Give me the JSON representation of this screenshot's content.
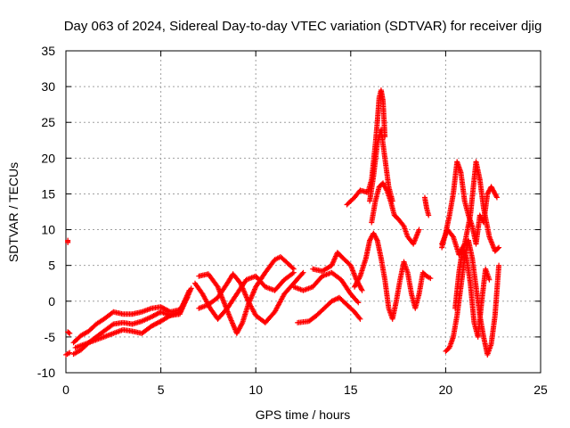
{
  "chart_data": {
    "type": "scatter",
    "title": "Day 063 of 2024, Sidereal Day-to-day VTEC variation (SDTVAR) for receiver djig",
    "xlabel": "GPS time / hours",
    "ylabel": "SDTVAR / TECUs",
    "xlim": [
      0,
      25
    ],
    "ylim": [
      -10,
      35
    ],
    "xticks": [
      0,
      5,
      10,
      15,
      20,
      25
    ],
    "yticks": [
      -10,
      -5,
      0,
      5,
      10,
      15,
      20,
      25,
      30,
      35
    ],
    "grid": true,
    "marker": "+",
    "color": "#ff0000",
    "series": [
      {
        "name": "s1",
        "points": [
          [
            0.1,
            8.2
          ],
          [
            0.1,
            8.5
          ]
        ]
      },
      {
        "name": "s2",
        "points": [
          [
            0.1,
            -4.3
          ],
          [
            0.2,
            -4.5
          ]
        ]
      },
      {
        "name": "s3",
        "points": [
          [
            0.0,
            -7.5
          ],
          [
            0.2,
            -7.2
          ]
        ]
      },
      {
        "name": "s4",
        "points": [
          [
            0.4,
            -5.8
          ],
          [
            0.8,
            -4.8
          ],
          [
            1.2,
            -4.2
          ],
          [
            1.6,
            -3.2
          ],
          [
            2.0,
            -2.5
          ],
          [
            2.5,
            -1.5
          ],
          [
            3.0,
            -1.8
          ],
          [
            3.5,
            -1.8
          ],
          [
            4.0,
            -1.5
          ],
          [
            4.5,
            -1.0
          ],
          [
            5.0,
            -0.8
          ],
          [
            5.5,
            -1.5
          ],
          [
            6.0,
            -1.2
          ],
          [
            6.4,
            0.5
          ]
        ]
      },
      {
        "name": "s5",
        "points": [
          [
            0.4,
            -7.4
          ],
          [
            0.8,
            -6.8
          ],
          [
            1.2,
            -5.8
          ],
          [
            1.6,
            -5.0
          ],
          [
            2.0,
            -4.2
          ],
          [
            2.5,
            -3.2
          ],
          [
            3.0,
            -3.0
          ],
          [
            3.5,
            -3.2
          ],
          [
            4.0,
            -2.8
          ],
          [
            4.5,
            -2.2
          ],
          [
            5.0,
            -1.5
          ],
          [
            5.5,
            -2.0
          ],
          [
            6.0,
            -1.5
          ],
          [
            6.5,
            1.5
          ]
        ]
      },
      {
        "name": "s6",
        "points": [
          [
            0.5,
            -6.5
          ],
          [
            1.0,
            -6.0
          ],
          [
            1.5,
            -5.5
          ],
          [
            2.0,
            -5.0
          ],
          [
            2.5,
            -4.5
          ],
          [
            3.0,
            -4.0
          ],
          [
            3.5,
            -4.2
          ],
          [
            4.0,
            -4.5
          ],
          [
            4.5,
            -3.5
          ],
          [
            5.0,
            -2.8
          ],
          [
            5.5,
            -2.0
          ],
          [
            6.0,
            -1.8
          ],
          [
            6.6,
            1.8
          ]
        ]
      },
      {
        "name": "s7",
        "points": [
          [
            7.0,
            3.5
          ],
          [
            7.5,
            3.8
          ],
          [
            8.0,
            2.0
          ],
          [
            8.3,
            0.0
          ],
          [
            8.6,
            -2.0
          ],
          [
            9.0,
            -4.5
          ],
          [
            9.3,
            -3.0
          ],
          [
            9.6,
            -0.5
          ],
          [
            10.0,
            2.0
          ],
          [
            10.5,
            4.0
          ],
          [
            11.0,
            5.8
          ],
          [
            11.3,
            6.2
          ],
          [
            11.6,
            5.5
          ],
          [
            12.0,
            4.5
          ]
        ]
      },
      {
        "name": "s8",
        "points": [
          [
            6.8,
            2.5
          ],
          [
            7.2,
            1.0
          ],
          [
            7.6,
            -1.0
          ],
          [
            8.0,
            -2.5
          ],
          [
            8.5,
            -1.0
          ],
          [
            9.0,
            1.0
          ],
          [
            9.5,
            3.0
          ],
          [
            10.0,
            3.5
          ],
          [
            10.5,
            2.0
          ],
          [
            11.0,
            1.5
          ],
          [
            11.5,
            3.0
          ],
          [
            12.0,
            4.0
          ]
        ]
      },
      {
        "name": "s9",
        "points": [
          [
            7.0,
            -1.0
          ],
          [
            7.5,
            -0.5
          ],
          [
            8.0,
            0.5
          ],
          [
            8.5,
            2.5
          ],
          [
            8.8,
            3.8
          ],
          [
            9.2,
            2.5
          ],
          [
            9.6,
            0.0
          ],
          [
            10.0,
            -2.0
          ],
          [
            10.5,
            -3.0
          ],
          [
            11.0,
            -1.5
          ],
          [
            11.5,
            1.0
          ],
          [
            12.0,
            2.5
          ],
          [
            12.5,
            4.0
          ]
        ]
      },
      {
        "name": "s10",
        "points": [
          [
            12.0,
            2.0
          ],
          [
            12.5,
            1.5
          ],
          [
            13.0,
            2.0
          ],
          [
            13.5,
            3.5
          ],
          [
            14.0,
            4.0
          ],
          [
            14.5,
            3.0
          ],
          [
            15.0,
            1.0
          ],
          [
            15.4,
            -0.2
          ]
        ]
      },
      {
        "name": "s11",
        "points": [
          [
            12.2,
            -3.0
          ],
          [
            12.8,
            -2.8
          ],
          [
            13.2,
            -2.0
          ],
          [
            13.6,
            -1.0
          ],
          [
            14.0,
            0.0
          ],
          [
            14.4,
            0.5
          ],
          [
            14.8,
            -0.5
          ],
          [
            15.2,
            -1.5
          ],
          [
            15.5,
            -2.5
          ]
        ]
      },
      {
        "name": "s12",
        "points": [
          [
            13.0,
            4.5
          ],
          [
            13.5,
            4.2
          ],
          [
            14.0,
            5.0
          ],
          [
            14.3,
            6.8
          ],
          [
            14.6,
            6.0
          ],
          [
            15.0,
            5.0
          ],
          [
            15.3,
            3.0
          ],
          [
            15.6,
            1.5
          ]
        ]
      },
      {
        "name": "s13",
        "points": [
          [
            14.8,
            13.5
          ],
          [
            15.2,
            14.5
          ],
          [
            15.5,
            15.5
          ],
          [
            15.9,
            15.2
          ],
          [
            16.1,
            17.0
          ],
          [
            16.3,
            22.0
          ],
          [
            16.4,
            25.0
          ],
          [
            16.5,
            28.5
          ],
          [
            16.6,
            29.5
          ],
          [
            16.7,
            28.0
          ],
          [
            16.8,
            23.0
          ]
        ]
      },
      {
        "name": "s14",
        "points": [
          [
            16.0,
            14.0
          ],
          [
            16.2,
            17.5
          ],
          [
            16.4,
            22.0
          ],
          [
            16.6,
            24.0
          ],
          [
            16.8,
            20.0
          ],
          [
            17.0,
            16.0
          ],
          [
            17.2,
            14.0
          ]
        ]
      },
      {
        "name": "s15",
        "points": [
          [
            16.1,
            11.0
          ],
          [
            16.3,
            14.0
          ],
          [
            16.5,
            16.0
          ],
          [
            16.7,
            16.5
          ],
          [
            16.9,
            15.5
          ],
          [
            17.1,
            14.0
          ],
          [
            17.3,
            12.0
          ],
          [
            17.5,
            11.5
          ],
          [
            17.8,
            10.5
          ],
          [
            18.0,
            9.0
          ],
          [
            18.3,
            8.0
          ],
          [
            18.6,
            10.0
          ]
        ]
      },
      {
        "name": "s16",
        "points": [
          [
            15.2,
            2.0
          ],
          [
            15.5,
            3.5
          ],
          [
            15.8,
            6.0
          ],
          [
            16.0,
            8.5
          ],
          [
            16.2,
            9.5
          ],
          [
            16.4,
            8.5
          ],
          [
            16.6,
            6.0
          ],
          [
            16.8,
            3.0
          ],
          [
            17.0,
            -1.0
          ],
          [
            17.2,
            -2.5
          ],
          [
            17.4,
            0.0
          ],
          [
            17.6,
            3.0
          ],
          [
            17.8,
            5.5
          ],
          [
            18.0,
            4.0
          ],
          [
            18.2,
            1.0
          ],
          [
            18.4,
            -1.0
          ],
          [
            18.6,
            1.0
          ],
          [
            18.8,
            4.0
          ],
          [
            19.0,
            3.5
          ],
          [
            19.2,
            3.2
          ]
        ]
      },
      {
        "name": "s17",
        "points": [
          [
            18.9,
            14.5
          ],
          [
            19.0,
            13.0
          ],
          [
            19.1,
            12.0
          ]
        ]
      },
      {
        "name": "s18",
        "points": [
          [
            19.8,
            7.5
          ],
          [
            20.0,
            9.5
          ],
          [
            20.2,
            12.0
          ],
          [
            20.4,
            15.0
          ],
          [
            20.6,
            19.5
          ],
          [
            20.8,
            18.0
          ],
          [
            21.0,
            14.0
          ],
          [
            21.2,
            12.0
          ],
          [
            21.4,
            10.5
          ],
          [
            21.6,
            8.0
          ],
          [
            21.8,
            12.0
          ],
          [
            22.0,
            11.0
          ],
          [
            22.2,
            15.0
          ],
          [
            22.4,
            16.0
          ],
          [
            22.6,
            15.0
          ],
          [
            22.7,
            14.5
          ]
        ]
      },
      {
        "name": "s19",
        "points": [
          [
            20.0,
            -7.0
          ],
          [
            20.2,
            -6.5
          ],
          [
            20.4,
            -5.0
          ],
          [
            20.6,
            -2.0
          ],
          [
            20.8,
            2.0
          ],
          [
            21.0,
            6.0
          ],
          [
            21.2,
            8.5
          ],
          [
            21.4,
            6.0
          ],
          [
            21.6,
            2.0
          ],
          [
            21.8,
            -2.0
          ],
          [
            22.0,
            -5.0
          ],
          [
            22.2,
            -7.5
          ],
          [
            22.4,
            -6.0
          ],
          [
            22.6,
            -2.0
          ],
          [
            22.8,
            5.0
          ]
        ]
      },
      {
        "name": "s20",
        "points": [
          [
            19.8,
            8.0
          ],
          [
            20.1,
            10.0
          ],
          [
            20.4,
            9.0
          ],
          [
            20.7,
            6.5
          ],
          [
            21.0,
            8.0
          ],
          [
            21.3,
            12.0
          ],
          [
            21.6,
            19.5
          ],
          [
            21.8,
            17.0
          ],
          [
            22.0,
            13.0
          ],
          [
            22.3,
            9.0
          ],
          [
            22.6,
            7.0
          ],
          [
            22.8,
            7.5
          ]
        ]
      },
      {
        "name": "s21",
        "points": [
          [
            20.5,
            -1.0
          ],
          [
            20.7,
            4.0
          ],
          [
            20.9,
            7.5
          ],
          [
            21.1,
            6.0
          ],
          [
            21.3,
            2.5
          ],
          [
            21.5,
            -3.0
          ],
          [
            21.7,
            -5.0
          ],
          [
            21.9,
            0.0
          ],
          [
            22.1,
            4.5
          ],
          [
            22.3,
            3.0
          ]
        ]
      }
    ]
  }
}
